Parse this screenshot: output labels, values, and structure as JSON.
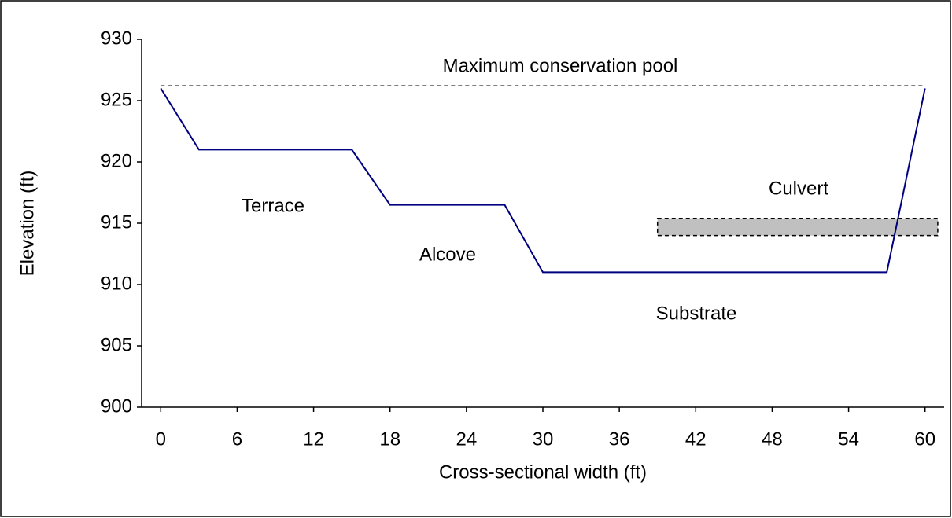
{
  "chart_data": {
    "type": "line",
    "x_label": "Cross-sectional width (ft)",
    "y_label": "Elevation (ft)",
    "x": [
      0,
      3,
      15,
      18,
      27,
      30,
      57,
      60
    ],
    "series": [
      {
        "color": "#000080",
        "values": [
          926,
          921,
          921,
          916.5,
          916.5,
          911,
          911,
          926
        ]
      }
    ],
    "xlim": [
      -1.5,
      61.5
    ],
    "xticks": [
      0,
      6,
      12,
      18,
      24,
      30,
      36,
      42,
      48,
      54,
      60
    ],
    "ylim": [
      900,
      930
    ],
    "yticks": [
      900,
      905,
      910,
      915,
      920,
      925,
      930
    ],
    "pool": {
      "text": "Maximum conservation pool",
      "x": [
        0,
        60
      ],
      "y": 926.2
    },
    "culvert": {
      "text": "Culvert",
      "x": [
        39,
        61
      ],
      "y": [
        914,
        915.4
      ],
      "color": "#c0c0c0"
    },
    "regions": [
      "Terrace",
      "Alcove",
      "Substrate"
    ]
  }
}
